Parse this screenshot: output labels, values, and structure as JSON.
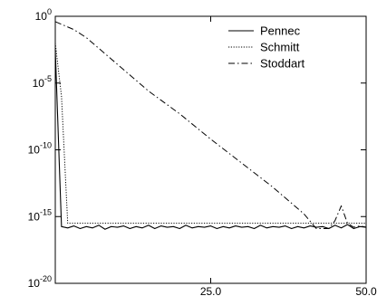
{
  "chart_data": {
    "type": "line",
    "title": "",
    "xlabel": "",
    "ylabel": "",
    "x_scale": "linear",
    "y_scale": "log",
    "xlim": [
      0,
      50
    ],
    "ylim": [
      1e-20,
      1
    ],
    "x_ticks": [
      {
        "value": 25,
        "label": "25.0"
      },
      {
        "value": 50,
        "label": "50.0"
      }
    ],
    "y_ticks": [
      {
        "exp": 0,
        "base": "10",
        "sup": "0"
      },
      {
        "exp": -5,
        "base": "10",
        "sup": "-5"
      },
      {
        "exp": -10,
        "base": "10",
        "sup": "-10"
      },
      {
        "exp": -15,
        "base": "10",
        "sup": "-15"
      },
      {
        "exp": -20,
        "base": "10",
        "sup": "-20"
      }
    ],
    "grid": false,
    "legend_position": "top-right",
    "series": [
      {
        "name": "Pennec",
        "style": "solid",
        "x": [
          0,
          1,
          2,
          3,
          4,
          5,
          6,
          7,
          8,
          9,
          10,
          11,
          12,
          13,
          14,
          15,
          16,
          17,
          18,
          19,
          20,
          21,
          22,
          23,
          24,
          25,
          26,
          27,
          28,
          29,
          30,
          31,
          32,
          33,
          34,
          35,
          36,
          37,
          38,
          39,
          40,
          41,
          42,
          43,
          44,
          45,
          46,
          47,
          48,
          49,
          50
        ],
        "y_log10": [
          -2.5,
          -15.75,
          -15.85,
          -15.7,
          -15.9,
          -15.75,
          -15.85,
          -15.65,
          -15.95,
          -15.75,
          -15.8,
          -15.7,
          -15.9,
          -15.75,
          -15.85,
          -15.65,
          -15.9,
          -15.7,
          -15.8,
          -15.75,
          -15.9,
          -15.65,
          -15.85,
          -15.75,
          -15.8,
          -15.7,
          -15.9,
          -15.75,
          -15.85,
          -15.7,
          -15.8,
          -15.75,
          -15.9,
          -15.65,
          -15.85,
          -15.75,
          -15.8,
          -15.7,
          -15.9,
          -15.75,
          -15.85,
          -15.7,
          -15.8,
          -15.75,
          -15.9,
          -15.65,
          -15.85,
          -15.6,
          -15.9,
          -15.75,
          -15.8
        ]
      },
      {
        "name": "Schmitt",
        "style": "dotted",
        "x": [
          0,
          1,
          2,
          50
        ],
        "y_log10": [
          -2.0,
          -6.0,
          -15.5,
          -15.5
        ]
      },
      {
        "name": "Stoddart",
        "style": "dashdot",
        "x": [
          0,
          1,
          3,
          5,
          10,
          15,
          20,
          25,
          30,
          35,
          40,
          42,
          44,
          45,
          46,
          47,
          48,
          49,
          50
        ],
        "y_log10": [
          -0.4,
          -0.6,
          -1.0,
          -1.6,
          -3.6,
          -5.6,
          -7.3,
          -9.2,
          -11.0,
          -12.8,
          -14.8,
          -15.9,
          -15.9,
          -15.3,
          -14.2,
          -15.5,
          -15.8,
          -15.7,
          -15.8
        ]
      }
    ]
  }
}
